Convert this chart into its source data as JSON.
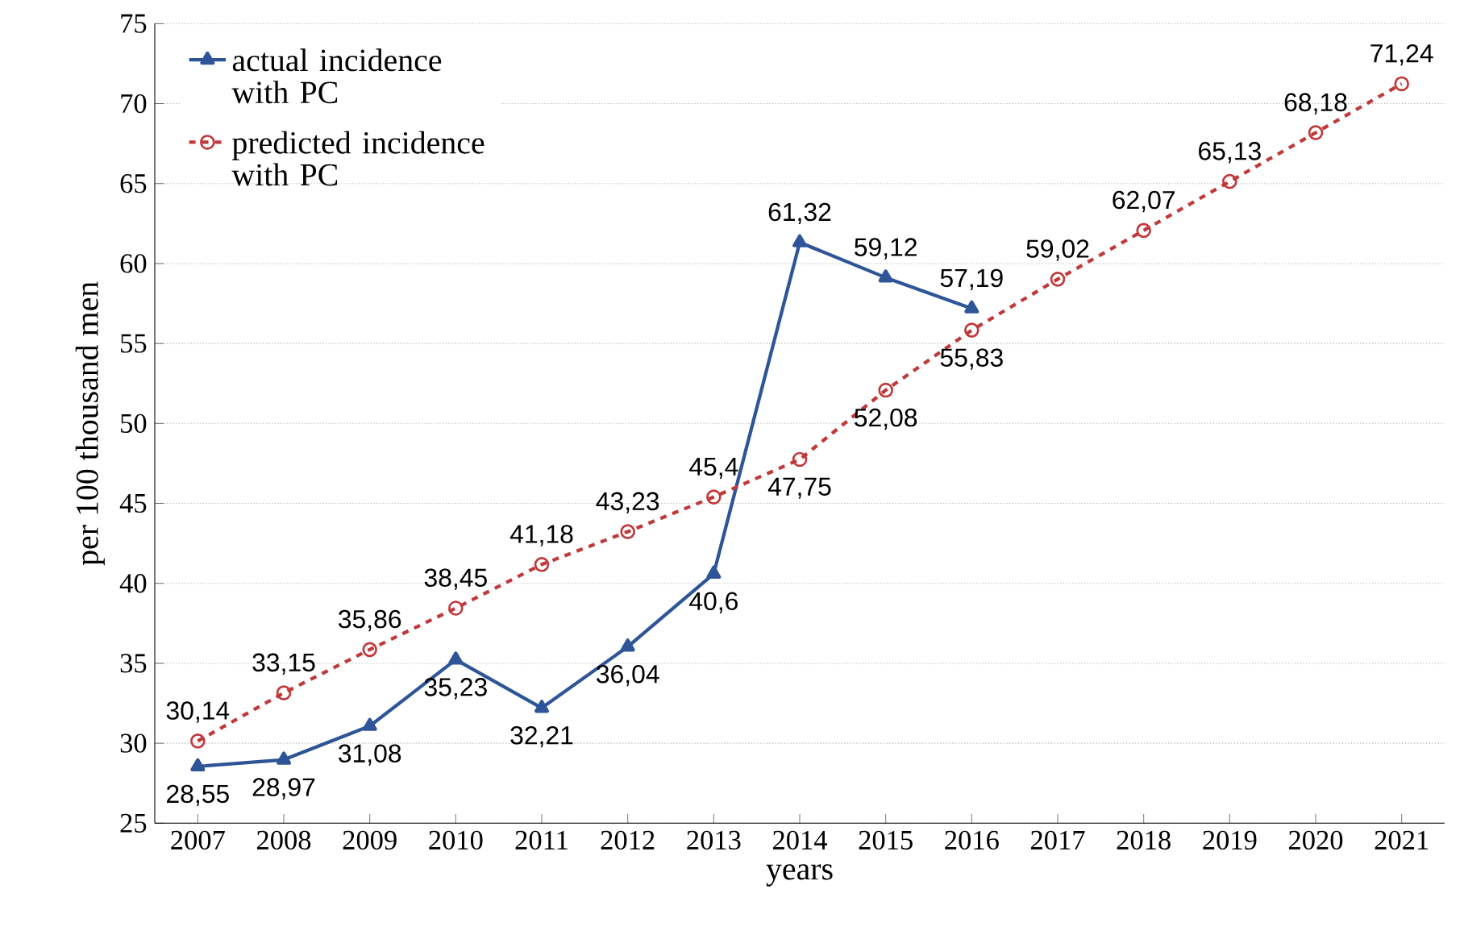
{
  "chart_data": {
    "type": "line",
    "xlabel": "years",
    "ylabel": "per 100 thousand men",
    "categories": [
      "2007",
      "2008",
      "2009",
      "2010",
      "2011",
      "2012",
      "2013",
      "2014",
      "2015",
      "2016",
      "2017",
      "2018",
      "2019",
      "2020",
      "2021"
    ],
    "series": [
      {
        "name": "actual incidence with PC",
        "color": "#2e5597",
        "marker": "triangle",
        "line_style": "solid",
        "values": [
          28.55,
          28.97,
          31.08,
          35.23,
          32.21,
          36.04,
          40.6,
          61.32,
          59.12,
          57.19,
          null,
          null,
          null,
          null,
          null
        ],
        "value_labels": [
          "28,55",
          "28,97",
          "31,08",
          "35,23",
          "32,21",
          "36,04",
          "40,6",
          "61,32",
          "59,12",
          "57,19",
          null,
          null,
          null,
          null,
          null
        ]
      },
      {
        "name": "predicted incidence with PC",
        "color": "#c0393b",
        "marker": "circle",
        "line_style": "dashed",
        "values": [
          30.14,
          33.15,
          35.86,
          38.45,
          41.18,
          43.23,
          45.4,
          47.75,
          52.08,
          55.83,
          59.02,
          62.07,
          65.13,
          68.18,
          71.24
        ],
        "value_labels": [
          "30,14",
          "33,15",
          "35,86",
          "38,45",
          "41,18",
          "43,23",
          "45,4",
          "47,75",
          "52,08",
          "55,83",
          "59,02",
          "62,07",
          "65,13",
          "68,18",
          "71,24"
        ]
      }
    ],
    "ylim": [
      25,
      75
    ],
    "yticks": [
      25,
      30,
      35,
      40,
      45,
      50,
      55,
      60,
      65,
      70,
      75
    ],
    "grid": "y",
    "legend": "top left"
  }
}
